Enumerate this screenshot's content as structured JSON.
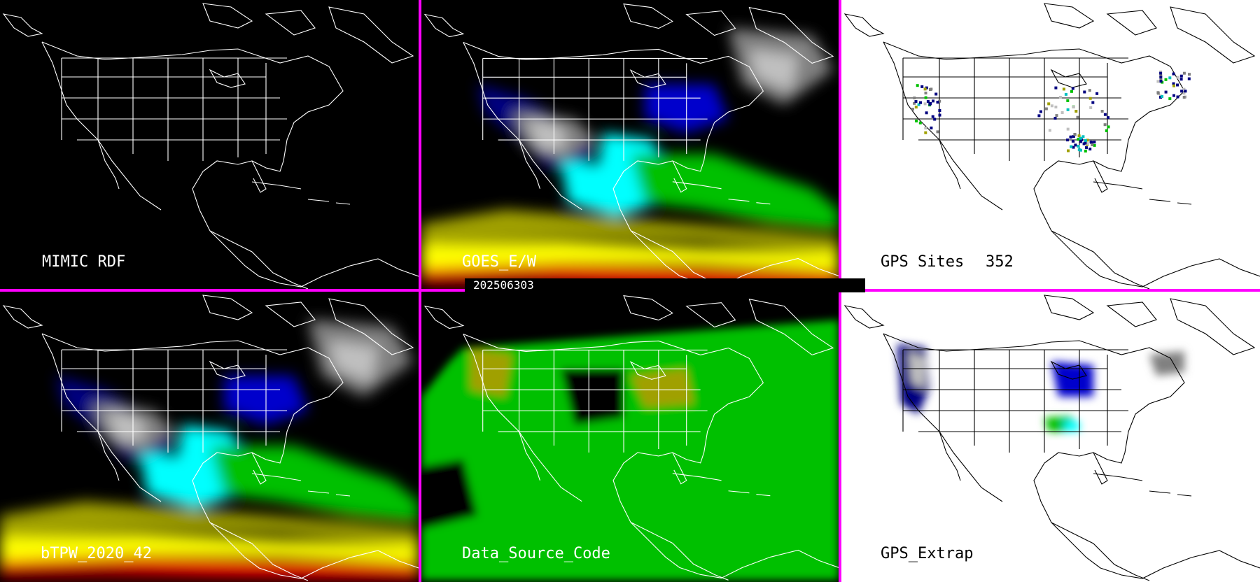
{
  "timestamp": "202506303",
  "panels": [
    {
      "label": "MIMIC RDF",
      "theme": "dark",
      "layer": "none"
    },
    {
      "label": "GOES_E/W",
      "theme": "dark",
      "layer": "tpw"
    },
    {
      "label": "GPS Sites",
      "count": "352",
      "theme": "light",
      "layer": "sites"
    },
    {
      "label": "bTPW_2020_42",
      "theme": "dark",
      "layer": "tpw"
    },
    {
      "label": "Data_Source_Code",
      "theme": "dark",
      "layer": "source"
    },
    {
      "label": "GPS_Extrap",
      "theme": "light",
      "layer": "extrap"
    }
  ],
  "colors": {
    "divider": "#ff00ff",
    "dark_bg": "#000000",
    "light_bg": "#ffffff",
    "tpw_scale": [
      "#808080",
      "#c0c0c0",
      "#000080",
      "#0000ff",
      "#00ffff",
      "#00ff00",
      "#00c000",
      "#a0a000",
      "#ffff00",
      "#ff0000"
    ],
    "source_main": "#00c000",
    "source_alt": "#a0a000"
  }
}
